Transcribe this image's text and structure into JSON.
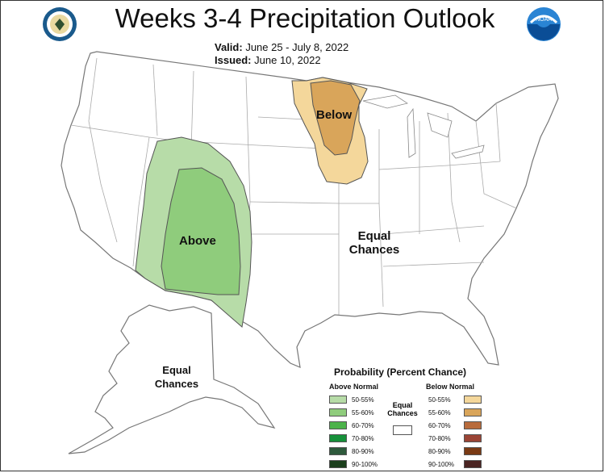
{
  "header": {
    "title": "Weeks 3-4 Precipitation Outlook",
    "valid_label": "Valid:",
    "valid_value": "June 25 - July 8, 2022",
    "issued_label": "Issued:",
    "issued_value": "June 10, 2022",
    "logo_left": "commerce-seal-icon",
    "logo_right": "noaa-logo-icon"
  },
  "map": {
    "labels": {
      "below": "Below",
      "above": "Above",
      "equal_conus_line1": "Equal",
      "equal_conus_line2": "Chances",
      "equal_ak_line1": "Equal",
      "equal_ak_line2": "Chances"
    },
    "colors": {
      "above_50_55": "#b7dca8",
      "above_55_60": "#8fcc7c",
      "below_50_55": "#f4d79b",
      "below_55_60": "#d9a55a"
    }
  },
  "legend": {
    "title": "Probability (Percent Chance)",
    "above_header": "Above Normal",
    "below_header": "Below Normal",
    "equal_label_line1": "Equal",
    "equal_label_line2": "Chances",
    "above": [
      {
        "label": "50-55%",
        "color": "#b7dca8"
      },
      {
        "label": "55-60%",
        "color": "#8fcc7c"
      },
      {
        "label": "60-70%",
        "color": "#4cb34a"
      },
      {
        "label": "70-80%",
        "color": "#16913a"
      },
      {
        "label": "80-90%",
        "color": "#2e5a3c"
      },
      {
        "label": "90-100%",
        "color": "#1b3f1c"
      }
    ],
    "below": [
      {
        "label": "50-55%",
        "color": "#f4d79b"
      },
      {
        "label": "55-60%",
        "color": "#d9a55a"
      },
      {
        "label": "60-70%",
        "color": "#b86b3c"
      },
      {
        "label": "70-80%",
        "color": "#9a4435"
      },
      {
        "label": "80-90%",
        "color": "#7a3a14"
      },
      {
        "label": "90-100%",
        "color": "#4a2422"
      }
    ]
  }
}
